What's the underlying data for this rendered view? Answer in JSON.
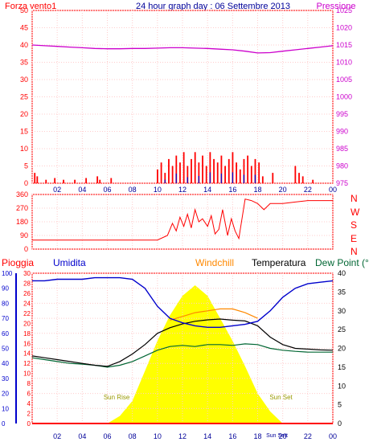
{
  "header": {
    "left_title": "Forza vento1",
    "center_title": "24 hour graph day : 06 Settembre 2013",
    "right_title": "Pressione"
  },
  "x_tick_labels": [
    "02",
    "04",
    "06",
    "08",
    "10",
    "12",
    "14",
    "16",
    "18",
    "20",
    "22",
    "00"
  ],
  "colors": {
    "frame": "#ff0000",
    "wind": "#ff0000",
    "gust_overlay": "#0000cc",
    "pressure": "#cc00cc",
    "humidity": "#0000cc",
    "temperature": "#000000",
    "windchill": "#ff8800",
    "dewpoint": "#006633",
    "solar": "#ffff00",
    "rain": "#ff0000"
  },
  "chart_data": [
    {
      "type": "bar",
      "name_visible": "Forza vento1",
      "left_axis_ticks": [
        "0",
        "5",
        "10",
        "15",
        "20",
        "25",
        "30",
        "35",
        "40",
        "45",
        "50"
      ],
      "right_axis_label": "Pressione",
      "right_axis_ticks": [
        "975",
        "980",
        "985",
        "990",
        "995",
        "1000",
        "1005",
        "1010",
        "1015",
        "1020",
        "1025"
      ],
      "ylim_left": [
        0,
        50
      ],
      "ylim_right": [
        975,
        1025
      ],
      "x_range_hours": [
        0,
        24
      ],
      "pressure_series": {
        "x": [
          0,
          1,
          2,
          3,
          4,
          5,
          6,
          7,
          8,
          9,
          10,
          11,
          12,
          13,
          14,
          15,
          16,
          17,
          18,
          19,
          20,
          21,
          22,
          23,
          24
        ],
        "values": [
          1015,
          1014.8,
          1014.6,
          1014.4,
          1014.2,
          1014,
          1013.9,
          1013.9,
          1014,
          1014,
          1014.1,
          1014.2,
          1014.2,
          1014.1,
          1014,
          1013.8,
          1013.6,
          1013.2,
          1012.7,
          1012.8,
          1013.2,
          1013.6,
          1014,
          1014.4,
          1014.8
        ]
      },
      "wind_gust_bars": {
        "x": [
          0.2,
          0.4,
          1.1,
          1.8,
          2.5,
          3.4,
          4.3,
          5.2,
          5.4,
          6.3,
          10.0,
          10.3,
          10.6,
          10.9,
          11.2,
          11.5,
          11.8,
          12.1,
          12.4,
          12.7,
          13.0,
          13.3,
          13.6,
          13.9,
          14.2,
          14.5,
          14.8,
          15.1,
          15.4,
          15.7,
          16.0,
          16.3,
          16.6,
          16.9,
          17.2,
          17.5,
          17.8,
          18.1,
          18.4,
          19.2,
          21.0,
          21.3,
          21.6,
          22.4
        ],
        "values": [
          3,
          2,
          1,
          1.5,
          1,
          1,
          1.5,
          2,
          1,
          1.5,
          4,
          6,
          3,
          7,
          5,
          8,
          6,
          9,
          5,
          7,
          9,
          6,
          8,
          5,
          9,
          7,
          6,
          8,
          5,
          7,
          9,
          6,
          4,
          7,
          8,
          5,
          7,
          6,
          2,
          3,
          5,
          3,
          2,
          1
        ]
      }
    },
    {
      "type": "line",
      "name_visible": "Direzione",
      "left_axis_ticks": [
        "0",
        "90",
        "180",
        "270",
        "360"
      ],
      "right_axis_labels": [
        "N",
        "W",
        "S",
        "E",
        "N"
      ],
      "ylim": [
        0,
        360
      ],
      "x": [
        0,
        1,
        2,
        3,
        4,
        5,
        6,
        7,
        8,
        9,
        10,
        10.8,
        11.2,
        11.5,
        11.8,
        12.1,
        12.4,
        12.7,
        13.0,
        13.3,
        13.6,
        14.0,
        14.3,
        14.6,
        14.9,
        15.2,
        15.6,
        15.9,
        16.2,
        16.5,
        17.0,
        17.5,
        18.0,
        18.5,
        19.0,
        20.0,
        21.0,
        22.0,
        23.0,
        24.0
      ],
      "values": [
        60,
        60,
        60,
        60,
        60,
        60,
        60,
        60,
        60,
        60,
        60,
        90,
        170,
        120,
        210,
        150,
        230,
        140,
        260,
        180,
        200,
        150,
        220,
        100,
        130,
        260,
        90,
        200,
        120,
        70,
        330,
        320,
        300,
        260,
        300,
        300,
        310,
        320,
        320,
        320
      ]
    },
    {
      "type": "line",
      "legend": [
        "Pioggia",
        "Umidita",
        "Windchill",
        "Temperatura",
        "Dew Point (°C"
      ],
      "humidity_axis_ticks": [
        "0",
        "10",
        "20",
        "30",
        "40",
        "50",
        "60",
        "70",
        "80",
        "90",
        "100"
      ],
      "rain_axis_ticks": [
        "0",
        "2",
        "4",
        "6",
        "8",
        "10",
        "12",
        "14",
        "16",
        "18",
        "20",
        "22",
        "24",
        "26",
        "28",
        "30"
      ],
      "temp_axis_ticks": [
        "0",
        "5",
        "10",
        "15",
        "20",
        "25",
        "30",
        "35",
        "40"
      ],
      "ylim_humidity": [
        0,
        100
      ],
      "ylim_temperature": [
        0,
        40
      ],
      "annotations": [
        "Sun Rise",
        "Sun Set",
        "Sun Sett"
      ],
      "x": [
        0,
        1,
        2,
        3,
        4,
        5,
        6,
        7,
        8,
        9,
        10,
        11,
        12,
        13,
        14,
        15,
        16,
        17,
        18,
        19,
        20,
        21,
        22,
        23,
        24
      ],
      "humidity": [
        95,
        95,
        96,
        96,
        96,
        97,
        97,
        97,
        96,
        90,
        78,
        70,
        67,
        65,
        64,
        64,
        65,
        66,
        68,
        75,
        84,
        90,
        93,
        94,
        95
      ],
      "temperature": [
        18,
        17.5,
        17,
        16.5,
        16,
        15.5,
        15.2,
        16.5,
        18.5,
        21,
        24,
        25.5,
        26.5,
        27.2,
        27.6,
        27.8,
        27.5,
        27.3,
        26,
        23,
        21,
        20,
        19.8,
        19.6,
        19.5
      ],
      "windchill": [
        null,
        null,
        null,
        null,
        null,
        null,
        null,
        null,
        null,
        null,
        null,
        27.5,
        28.5,
        29.5,
        30,
        30.5,
        30.5,
        29.5,
        28,
        null,
        null,
        null,
        null,
        null,
        null
      ],
      "dewpoint": [
        17.5,
        17,
        16.5,
        16,
        15.8,
        15.5,
        15,
        15.5,
        16.5,
        18,
        19.5,
        20.5,
        20.8,
        20.5,
        21,
        21,
        20.8,
        21.2,
        21,
        20,
        19.5,
        19.2,
        19,
        19,
        19
      ],
      "solar_radiation_relative": [
        0,
        0,
        0,
        0,
        0,
        0,
        0,
        0.05,
        0.15,
        0.35,
        0.55,
        0.72,
        0.85,
        0.92,
        0.85,
        0.7,
        0.55,
        0.38,
        0.2,
        0.08,
        0,
        0,
        0,
        0,
        0
      ],
      "rain": [
        0,
        0,
        0,
        0,
        0,
        0,
        0,
        0,
        0,
        0,
        0,
        0,
        0,
        0,
        0,
        0,
        0,
        0,
        0,
        0,
        0,
        0,
        0,
        0,
        0
      ],
      "sun_rise_hour": 7,
      "sun_set_hour": 19.8
    }
  ]
}
